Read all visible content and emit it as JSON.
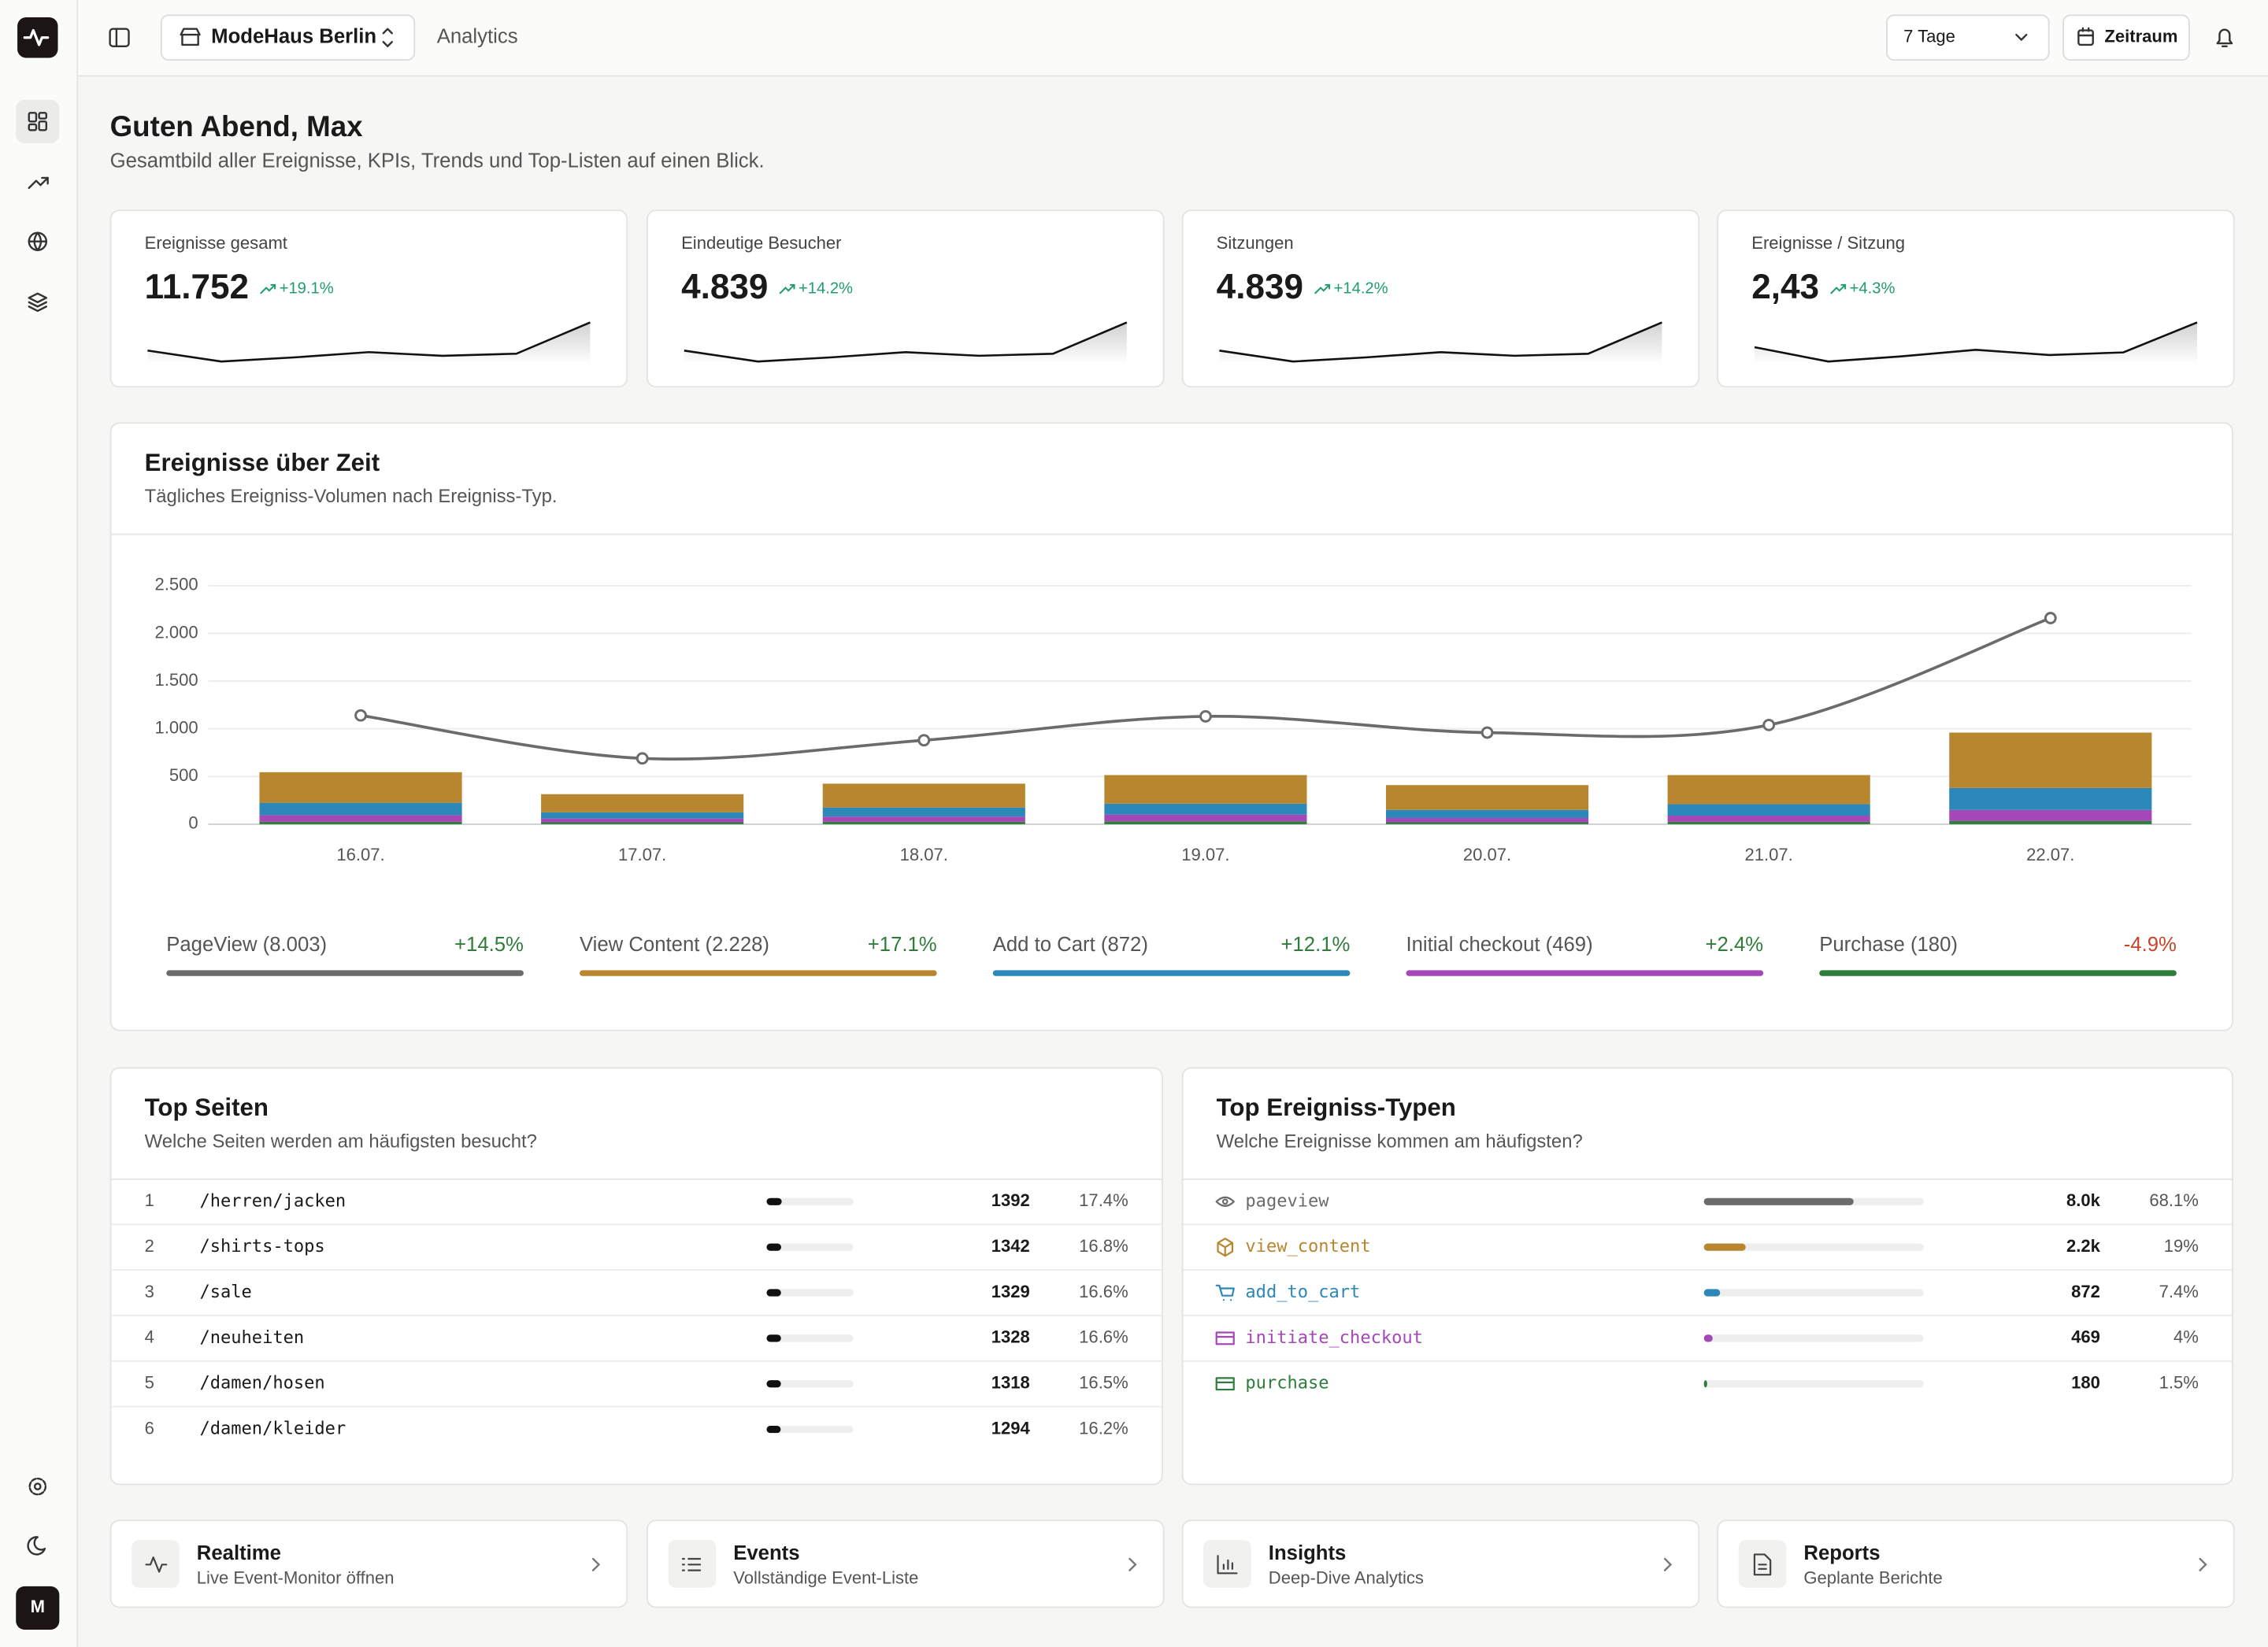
{
  "sidebar": {
    "avatar": "M"
  },
  "header": {
    "store": "ModeHaus Berlin",
    "section": "Analytics",
    "range": "7 Tage",
    "period_button": "Zeitraum"
  },
  "greeting": {
    "title": "Guten Abend, Max",
    "subtitle": "Gesamtbild aller Ereignisse, KPIs, Trends und Top-Listen auf einen Blick."
  },
  "kpis": [
    {
      "label": "Ereignisse gesamt",
      "value": "11.752",
      "change": "+19.1%",
      "trend": [
        1700,
        1280,
        1440,
        1640,
        1500,
        1580,
        2780
      ]
    },
    {
      "label": "Eindeutige Besucher",
      "value": "4.839",
      "change": "+14.2%",
      "trend": [
        700,
        527,
        593,
        675,
        618,
        650,
        1145
      ]
    },
    {
      "label": "Sitzungen",
      "value": "4.839",
      "change": "+14.2%",
      "trend": [
        700,
        527,
        593,
        675,
        618,
        650,
        1145
      ]
    },
    {
      "label": "Ereignisse / Sitzung",
      "value": "2,43",
      "change": "+4.3%",
      "trend": [
        2.43,
        2.32,
        2.36,
        2.41,
        2.37,
        2.39,
        2.62
      ]
    }
  ],
  "chart_data": {
    "type": "bar",
    "title": "Ereignisse über Zeit",
    "subtitle": "Tägliches Ereigniss-Volumen nach Ereigniss-Typ.",
    "categories": [
      "16.07.",
      "17.07.",
      "18.07.",
      "19.07.",
      "20.07.",
      "21.07.",
      "22.07."
    ],
    "stacked": true,
    "ylim": [
      0,
      2500
    ],
    "yticks": [
      0,
      500,
      {
        "value": 1000,
        "label": "1.000"
      },
      {
        "value": 1500,
        "label": "1.500"
      },
      {
        "value": 2000,
        "label": "2.000"
      },
      {
        "value": 2500,
        "label": "2.500"
      }
    ],
    "grid": true,
    "series": [
      {
        "name": "PageView (8.003)",
        "change": "+14.5%",
        "type": "line",
        "color": "#6b6b6b",
        "values": [
          1140,
          690,
          880,
          1130,
          960,
          1040,
          2160
        ]
      },
      {
        "name": "View Content (2.228)",
        "change": "+17.1%",
        "type": "bar",
        "color": "#b8862f",
        "values": [
          320,
          190,
          250,
          300,
          260,
          305,
          580
        ]
      },
      {
        "name": "Add to Cart (872)",
        "change": "+12.1%",
        "type": "bar",
        "color": "#2b88b8",
        "values": [
          130,
          65,
          95,
          115,
          85,
          120,
          230
        ]
      },
      {
        "name": "Initial checkout (469)",
        "change": "+2.4%",
        "type": "bar",
        "color": "#a647b8",
        "values": [
          70,
          40,
          55,
          70,
          45,
          65,
          115
        ]
      },
      {
        "name": "Purchase (180)",
        "change": "-4.9%",
        "type": "bar",
        "color": "#2e7d3a",
        "values": [
          25,
          20,
          25,
          30,
          20,
          25,
          35
        ]
      }
    ]
  },
  "top_pages": {
    "title": "Top Seiten",
    "subtitle": "Welche Seiten werden am häufigsten besucht?",
    "rows": [
      {
        "rank": 1,
        "path": "/herren/jacken",
        "count": 1392,
        "share": 17.4,
        "share_label": "17.4%"
      },
      {
        "rank": 2,
        "path": "/shirts-tops",
        "count": 1342,
        "share": 16.8,
        "share_label": "16.8%"
      },
      {
        "rank": 3,
        "path": "/sale",
        "count": 1329,
        "share": 16.6,
        "share_label": "16.6%"
      },
      {
        "rank": 4,
        "path": "/neuheiten",
        "count": 1328,
        "share": 16.6,
        "share_label": "16.6%"
      },
      {
        "rank": 5,
        "path": "/damen/hosen",
        "count": 1318,
        "share": 16.5,
        "share_label": "16.5%"
      },
      {
        "rank": 6,
        "path": "/damen/kleider",
        "count": 1294,
        "share": 16.2,
        "share_label": "16.2%"
      }
    ]
  },
  "event_types": {
    "title": "Top Ereigniss-Typen",
    "subtitle": "Welche Ereignisse kommen am häufigsten?",
    "rows": [
      {
        "name": "pageview",
        "color": "#6b6b6b",
        "count_label": "8.0k",
        "share": 68.1,
        "share_label": "68.1%"
      },
      {
        "name": "view_content",
        "color": "#b8862f",
        "count_label": "2.2k",
        "share": 19,
        "share_label": "19%"
      },
      {
        "name": "add_to_cart",
        "color": "#2b88b8",
        "count_label": "872",
        "share": 7.4,
        "share_label": "7.4%"
      },
      {
        "name": "initiate_checkout",
        "color": "#a647b8",
        "count_label": "469",
        "share": 4,
        "share_label": "4%"
      },
      {
        "name": "purchase",
        "color": "#2e7d3a",
        "count_label": "180",
        "share": 1.5,
        "share_label": "1.5%"
      }
    ]
  },
  "quick_links": [
    {
      "title": "Realtime",
      "subtitle": "Live Event-Monitor öffnen"
    },
    {
      "title": "Events",
      "subtitle": "Vollständige Event-Liste"
    },
    {
      "title": "Insights",
      "subtitle": "Deep-Dive Analytics"
    },
    {
      "title": "Reports",
      "subtitle": "Geplante Berichte"
    }
  ]
}
